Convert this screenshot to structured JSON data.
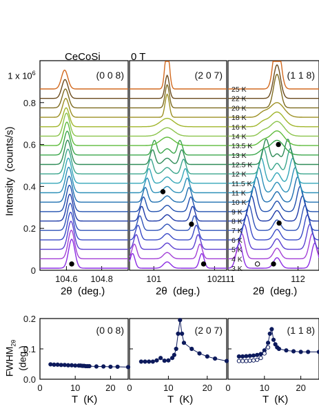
{
  "header": {
    "sample": "CeCoSi",
    "field": "0 T"
  },
  "colors": {
    "scan_palette": [
      "#6a1b1b",
      "#8a2be2",
      "#a23fd6",
      "#5b3fd1",
      "#3949c7",
      "#2f52b8",
      "#1e3aa8",
      "#1f4fae",
      "#1e6fb0",
      "#2a8fb8",
      "#33a6b8",
      "#3aa58c",
      "#2e8b57",
      "#3aa64a",
      "#5dbb3a",
      "#8bc34a",
      "#a0b52a",
      "#9c8f22",
      "#7d6a1e",
      "#6a4a1c",
      "#d2691e"
    ],
    "fwhm_marker": "#0d1a5c"
  },
  "chart_data": [
    {
      "type": "line",
      "panel": "intensity-008",
      "label": "(0 0 8)",
      "xlabel": "2θ  (deg.)",
      "ylabel": "Intensity  (counts/s)",
      "ylabel_multiplier": "1 x 10",
      "ylabel_exponent": "6",
      "xlim": [
        104.45,
        104.95
      ],
      "ylim": [
        0,
        1.0
      ],
      "x_ticks": [
        "104.6",
        "104.8"
      ],
      "y_ticks": [
        "0",
        "0.2",
        "0.4",
        "0.6",
        "0.8",
        "1 x 10"
      ],
      "marker": {
        "x": 104.63,
        "y": 0.03,
        "style": "filled"
      },
      "temperatures_K": [
        "3",
        "4",
        "5",
        "6",
        "7",
        "8",
        "9",
        "10",
        "11",
        "11.5",
        "12",
        "12.5",
        "13",
        "13.5",
        "14",
        "16",
        "18",
        "20",
        "22",
        "25"
      ],
      "offsets": [
        0.01,
        0.055,
        0.1,
        0.145,
        0.19,
        0.235,
        0.28,
        0.325,
        0.37,
        0.415,
        0.46,
        0.505,
        0.55,
        0.595,
        0.64,
        0.685,
        0.73,
        0.775,
        0.82,
        0.865
      ]
    },
    {
      "type": "line",
      "panel": "intensity-207",
      "label": "(2 0 7)",
      "xlabel": "2θ  (deg.)",
      "xlim": [
        100.6,
        102.2
      ],
      "x_ticks": [
        "101",
        "102"
      ],
      "markers": [
        {
          "x": 101.15,
          "y": 0.375,
          "style": "filled"
        },
        {
          "x": 101.62,
          "y": 0.22,
          "style": "filled"
        },
        {
          "x": 101.82,
          "y": 0.03,
          "style": "filled"
        }
      ]
    },
    {
      "type": "line",
      "panel": "intensity-118",
      "label": "(1 1 8)",
      "xlabel": "2θ  (deg.)",
      "xlim": [
        111.0,
        112.3
      ],
      "x_ticks": [
        "111",
        "112"
      ],
      "markers": [
        {
          "x": 111.72,
          "y": 0.6,
          "style": "filled"
        },
        {
          "x": 111.73,
          "y": 0.225,
          "style": "filled"
        },
        {
          "x": 111.65,
          "y": 0.03,
          "style": "filled"
        },
        {
          "x": 111.42,
          "y": 0.03,
          "style": "open"
        }
      ]
    },
    {
      "type": "scatter",
      "panel": "fwhm-008",
      "label": "(0 0 8)",
      "xlabel": "T  (K)",
      "ylabel": "FWHM",
      "ylabel_sub": "2θ",
      "ylabel_unit": "(deg.)",
      "xlim": [
        0,
        25
      ],
      "ylim": [
        0,
        0.2
      ],
      "x_ticks": [
        "0",
        "10",
        "20"
      ],
      "y_ticks": [
        "0.0",
        "0.1",
        "0.2"
      ],
      "series": [
        {
          "style": "filled",
          "x": [
            3,
            4,
            5,
            6,
            7,
            8,
            9,
            10,
            11,
            11.5,
            12,
            12.5,
            13,
            13.5,
            14,
            16,
            18,
            20,
            22,
            25
          ],
          "y": [
            0.049,
            0.048,
            0.048,
            0.047,
            0.047,
            0.046,
            0.046,
            0.045,
            0.045,
            0.045,
            0.044,
            0.044,
            0.043,
            0.043,
            0.043,
            0.042,
            0.042,
            0.041,
            0.041,
            0.04
          ]
        }
      ]
    },
    {
      "type": "scatter",
      "panel": "fwhm-207",
      "label": "(2 0 7)",
      "xlabel": "T  (K)",
      "xlim": [
        0,
        25
      ],
      "ylim": [
        0,
        0.2
      ],
      "x_ticks": [
        "0",
        "10",
        "20"
      ],
      "series": [
        {
          "style": "filled",
          "x": [
            3,
            4,
            5,
            6,
            7,
            8,
            9,
            10,
            11,
            11.5,
            12,
            12.5,
            13,
            13.5,
            14,
            16,
            18,
            20,
            22,
            25
          ],
          "y": [
            0.058,
            0.058,
            0.058,
            0.058,
            0.062,
            0.07,
            0.061,
            0.062,
            0.07,
            0.08,
            0.1,
            0.15,
            0.195,
            0.15,
            0.12,
            0.1,
            0.085,
            0.075,
            0.068,
            0.06
          ]
        }
      ]
    },
    {
      "type": "scatter",
      "panel": "fwhm-118",
      "label": "(1 1 8)",
      "xlabel": "T  (K)",
      "xlim": [
        0,
        25
      ],
      "ylim": [
        0,
        0.2
      ],
      "x_ticks": [
        "0",
        "10",
        "20"
      ],
      "series": [
        {
          "style": "filled",
          "x": [
            3,
            4,
            5,
            6,
            7,
            8,
            9,
            10,
            11,
            11.5,
            12,
            12.5,
            13,
            13.5,
            14,
            16,
            18,
            20,
            22,
            25
          ],
          "y": [
            0.075,
            0.075,
            0.076,
            0.077,
            0.078,
            0.08,
            0.083,
            0.095,
            0.12,
            0.15,
            0.165,
            0.13,
            0.115,
            0.105,
            0.1,
            0.095,
            0.092,
            0.09,
            0.09,
            0.09
          ]
        },
        {
          "style": "open",
          "x": [
            3,
            4,
            5,
            6,
            7,
            8,
            9,
            10,
            11
          ],
          "y": [
            0.06,
            0.06,
            0.06,
            0.061,
            0.062,
            0.064,
            0.07,
            0.085,
            0.105
          ]
        }
      ]
    }
  ]
}
